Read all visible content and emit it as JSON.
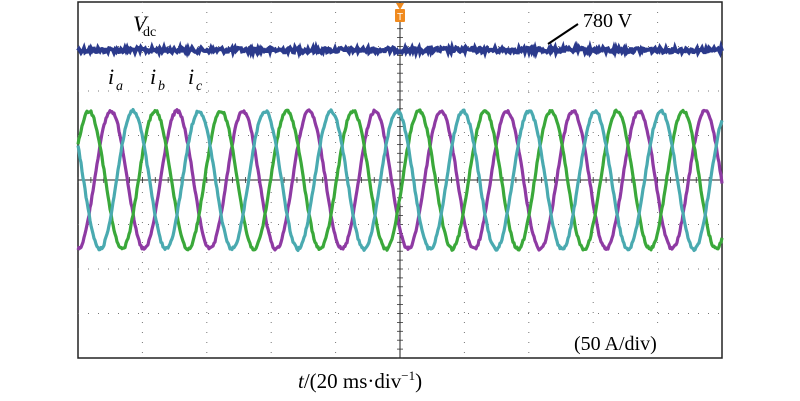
{
  "chart_data": {
    "type": "line",
    "x_unit": "ms",
    "xlim": [
      0,
      200
    ],
    "xlabel": {
      "prefix": "t",
      "rest": "/(20 ms·div",
      "sup": "−1",
      "close": ")"
    },
    "y_scale_text": "(50 A/div)",
    "dc_voltage": {
      "symbol": "V",
      "subscript": "dc",
      "value_text": "780 V",
      "color": "#2b3a8c"
    },
    "trigger_marker": "T",
    "grid": true,
    "series": [
      {
        "name": "a",
        "color": "#8e3aa3",
        "amplitude_div": 1.55,
        "period_ms": 20.5,
        "phase_deg": 270
      },
      {
        "name": "b",
        "color": "#3aa83a",
        "amplitude_div": 1.55,
        "period_ms": 20.5,
        "phase_deg": 30
      },
      {
        "name": "c",
        "color": "#4aaab0",
        "amplitude_div": 1.55,
        "period_ms": 20.5,
        "phase_deg": 150
      }
    ],
    "current_label_symbol": "i"
  }
}
